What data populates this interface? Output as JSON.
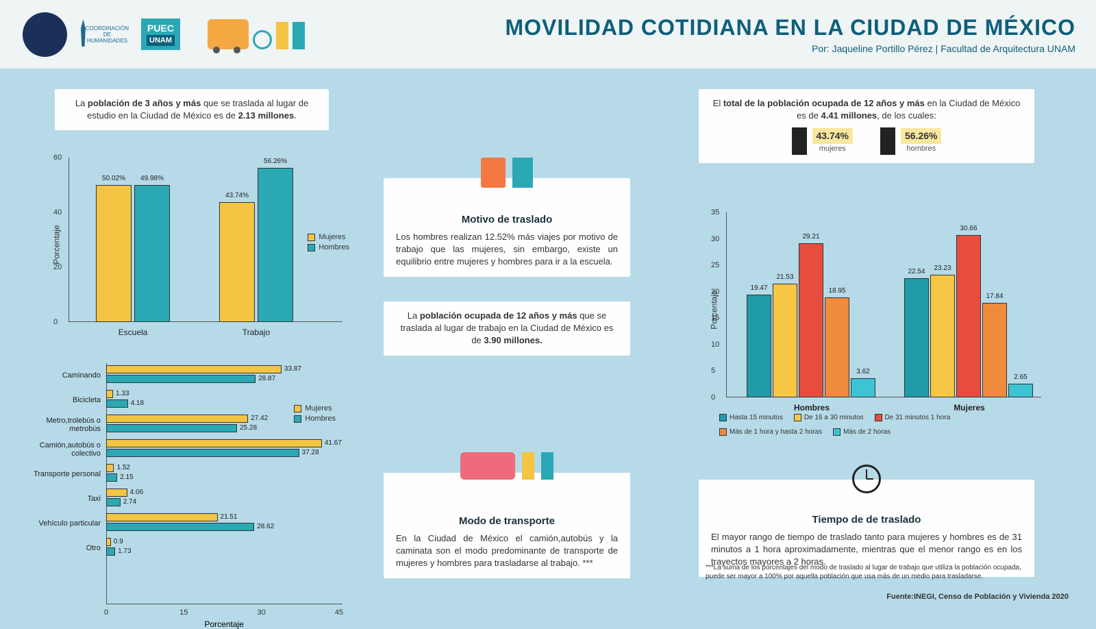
{
  "header": {
    "title": "MOVILIDAD COTIDIANA EN LA CIUDAD DE MÉXICO",
    "author_line": "Por: Jaqueline Portillo Pérez  | Facultad de Arquitectura UNAM",
    "logo_puec_top": "PUEC",
    "logo_puec_bot": "UNAM",
    "logo_coord": "COORDINACIÓN DE HUMANIDADES"
  },
  "callouts": {
    "c1_pre": "La ",
    "c1_bold1": "población de 3 años y más",
    "c1_mid": " que se traslada al lugar de estudio en la Ciudad de México es de ",
    "c1_bold2": "2.13  millones",
    "c1_post": ".",
    "c2_title": "Motivo de traslado",
    "c2_body": "Los hombres realizan 12.52% más viajes por motivo de trabajo que las mujeres, sin embargo, existe un equilibrio entre mujeres y hombres para ir a la escuela.",
    "c3_pre": "La ",
    "c3_bold1": "población ocupada de 12 años y más",
    "c3_mid": " que se traslada al lugar de trabajo en la Ciudad de México es de ",
    "c3_bold2": "3.90 millones.",
    "c4_title": "Modo de transporte",
    "c4_body": "En la Ciudad de México el camión,autobús y la caminata son el modo predominante de transporte de mujeres y hombres para trasladarse al trabajo. ***",
    "c5_pre": "El ",
    "c5_bold1": "total de la población ocupada de 12 años y más",
    "c5_mid": " en la Ciudad de México es de ",
    "c5_bold2": "4.41 millones",
    "c5_post": ", de los cuales:",
    "c5_pct_muj": "43.74%",
    "c5_lbl_muj": "mujeres",
    "c5_pct_hom": "56.26%",
    "c5_lbl_hom": "hombres",
    "c6_title": "Tiempo de de traslado",
    "c6_body": "El mayor rango de tiempo de traslado tanto para mujeres y hombres es de 31 minutos a 1 hora aproximadamente, mientras que el menor rango es en los trayectos mayores a 2 horas."
  },
  "colors": {
    "mujeres": "#f4c542",
    "hombres": "#2aa9b5",
    "teal": "#1f9ba8",
    "yellow": "#f6c744",
    "red": "#e84c3d",
    "orange": "#f08a3c",
    "cyan": "#3dc4d4",
    "bg": "#b6dae8"
  },
  "chart1": {
    "type": "grouped-bar-vertical",
    "ylabel": "Porcentaje",
    "ylim": [
      0,
      60
    ],
    "ytick_step": 20,
    "groups": [
      "Escuela",
      "Trabajo"
    ],
    "series": [
      {
        "name": "Mujeres",
        "color": "#f4c542",
        "values": [
          50.02,
          43.74
        ]
      },
      {
        "name": "Hombres",
        "color": "#2aa9b5",
        "values": [
          49.98,
          56.26
        ]
      }
    ],
    "legend": [
      "Mujeres",
      "Hombres"
    ]
  },
  "chart2": {
    "type": "grouped-bar-horizontal",
    "xlabel": "Porcentaje",
    "xlim": [
      0,
      45
    ],
    "xtick_step": 15,
    "categories": [
      "Caminando",
      "Bicicleta",
      "Metro,trolebús o metrobús",
      "Camión,autobús o colectivo",
      "Transporte personal",
      "Taxi",
      "Vehículo particular",
      "Otro"
    ],
    "series": [
      {
        "name": "Mujeres",
        "color": "#f4c542",
        "values": [
          33.87,
          1.33,
          27.42,
          41.67,
          1.52,
          4.06,
          21.51,
          0.9
        ]
      },
      {
        "name": "Hombres",
        "color": "#2aa9b5",
        "values": [
          28.87,
          4.18,
          25.28,
          37.28,
          2.15,
          2.74,
          28.62,
          1.73
        ]
      }
    ],
    "legend": [
      "Mujeres",
      "Hombres"
    ]
  },
  "chart3": {
    "type": "grouped-bar-vertical",
    "ylabel": "Porcentaje",
    "ylim": [
      0,
      35
    ],
    "ytick_step": 5,
    "groups": [
      "Hombres",
      "Mujeres"
    ],
    "series_labels": [
      "Hasta 15 minutos",
      "De 16 a 30 minutos",
      "De 31 minutos 1 hora",
      "Más de 1 hora y hasta 2 horas",
      "Más de 2 horas"
    ],
    "series_colors": [
      "#1f9ba8",
      "#f6c744",
      "#e84c3d",
      "#f08a3c",
      "#3dc4d4"
    ],
    "data": {
      "Hombres": [
        19.47,
        21.53,
        29.21,
        18.95,
        3.62
      ],
      "Mujeres": [
        22.54,
        23.23,
        30.66,
        17.84,
        2.65
      ]
    }
  },
  "footnotes": {
    "f1": "***La suma de los porcentajes del modo de traslado al lugar de trabajo que utiliza la población ocupada, puede ser mayor a 100% por aquella población que usa más de un medio para trasladarse.",
    "f2": "Fuente:INEGI, Censo de Población y Vivienda 2020"
  }
}
